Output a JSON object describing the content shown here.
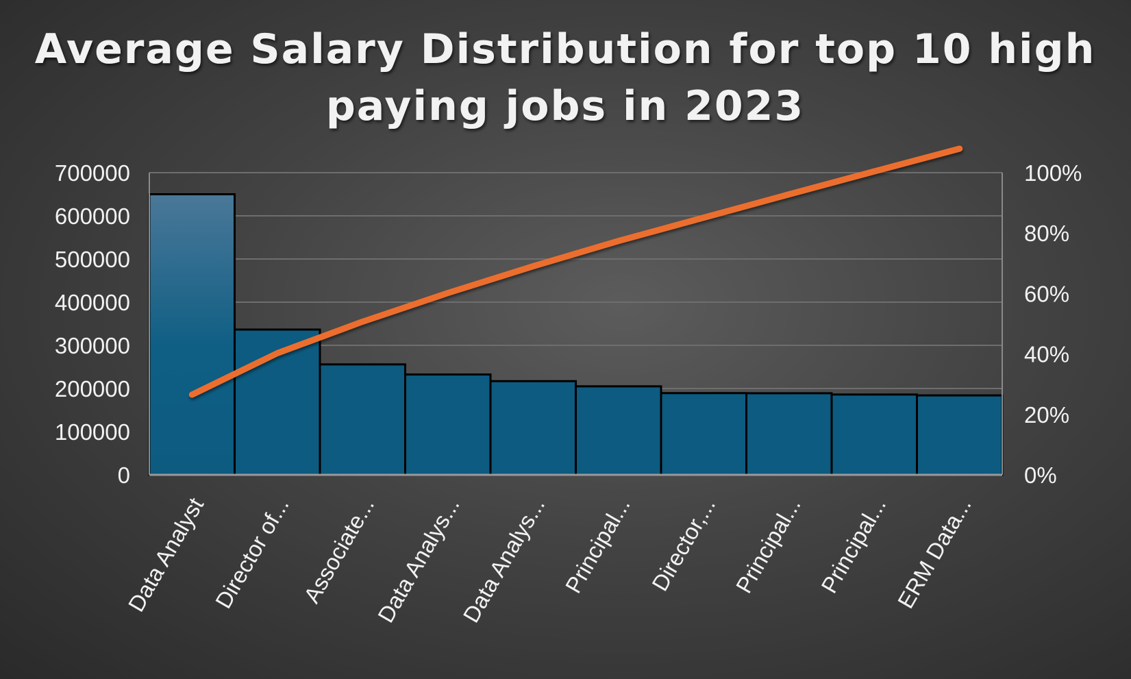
{
  "chart_data": {
    "type": "bar",
    "title": "Average Salary Distribution for top 10 high paying jobs in 2023",
    "title_lines": [
      "Average Salary Distribution for top 10 high",
      "paying jobs in 2023"
    ],
    "categories": [
      "Data Analyst",
      "Director of...",
      "Associate...",
      "Data Analys...",
      "Data Analys...",
      "Principal...",
      "Director,...",
      "Principal...",
      "Principal...",
      "ERM Data..."
    ],
    "series": [
      {
        "type": "bar",
        "values": [
          650000,
          336500,
          255830,
          232423,
          217000,
          205000,
          189309,
          189000,
          186000,
          184000
        ]
      },
      {
        "type": "line",
        "axis": "secondary",
        "values": [
          0.2652,
          0.4025,
          0.5069,
          0.6017,
          0.6903,
          0.7739,
          0.8512,
          0.9283,
          1.0042,
          1.0793
        ]
      }
    ],
    "xlabel": "",
    "ylabel": "",
    "ylim": [
      0,
      700000
    ],
    "y_ticks": [
      "0",
      "100000",
      "200000",
      "300000",
      "400000",
      "500000",
      "600000",
      "700000"
    ],
    "y2lim": [
      0,
      1
    ],
    "y2_ticks": [
      "0%",
      "20%",
      "40%",
      "60%",
      "80%",
      "100%"
    ],
    "grid": true,
    "legend": "none",
    "colors": {
      "bar_top": "#4a7898",
      "bar_fill": "#0d5b80",
      "bar_border": "#000000",
      "line": "#ec6e2d",
      "text": "#f2f2f2",
      "grid": "#6e6e6e"
    }
  }
}
